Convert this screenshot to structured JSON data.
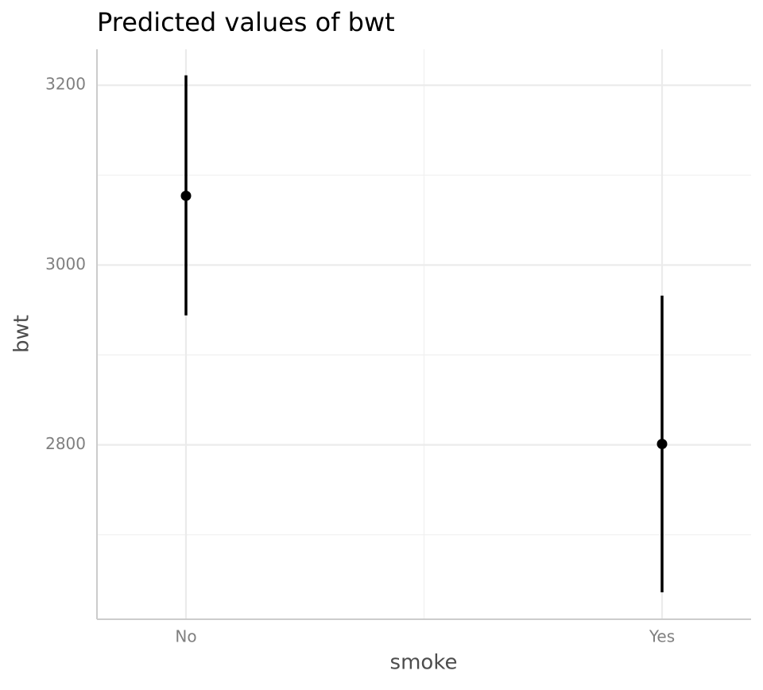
{
  "chart_data": {
    "type": "pointrange",
    "title": "Predicted values of bwt",
    "x_label": "smoke",
    "y_label": "bwt",
    "categories": [
      "No",
      "Yes"
    ],
    "series": [
      {
        "color": "#000000",
        "values": [
          3077,
          2801
        ],
        "lower": [
          2944,
          2636
        ],
        "upper": [
          3211,
          2966
        ]
      }
    ],
    "ylim": [
      2606,
      3240
    ],
    "yticks": [
      2800,
      3000,
      3200
    ],
    "minor_yticks": [
      2700,
      2900,
      3100
    ],
    "grid": true
  }
}
